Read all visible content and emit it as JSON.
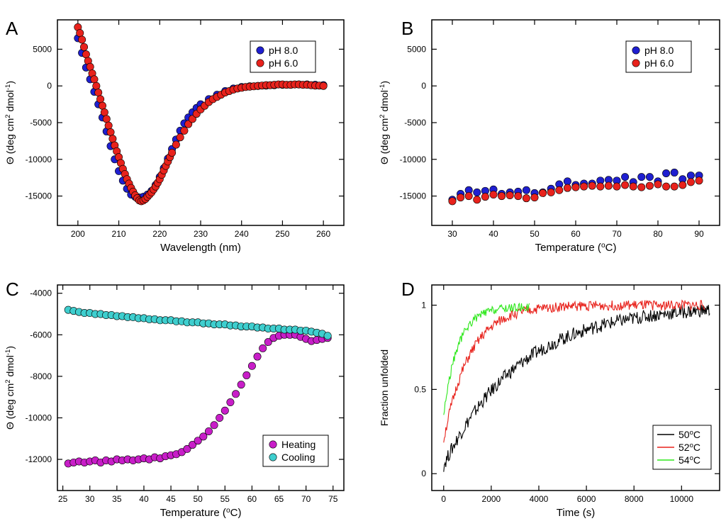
{
  "chart_data": [
    {
      "id": "A",
      "type": "scatter",
      "panel_label": "A",
      "xlabel": "Wavelength (nm)",
      "ylabel": {
        "pre": "Θ (deg cm",
        "sup1": "2",
        "mid": " dmol",
        "sup2": "-1",
        "post": ")"
      },
      "xlim": [
        195,
        265
      ],
      "ylim": [
        -19000,
        9000
      ],
      "xticks": [
        200,
        210,
        220,
        230,
        240,
        250,
        260
      ],
      "yticks": [
        5000,
        0,
        -5000,
        -10000,
        -15000
      ],
      "legend": {
        "placement": "top-right",
        "entries": [
          "pH 8.0",
          "pH 6.0"
        ]
      },
      "series": [
        {
          "name": "pH 8.0",
          "color": "#1f1fd0",
          "kind": "markers",
          "x": [
            200,
            201,
            202,
            203,
            204,
            205,
            206,
            207,
            208,
            209,
            210,
            211,
            212,
            213,
            214,
            215,
            216,
            217,
            218,
            219,
            220,
            221,
            222,
            223,
            224,
            225,
            226,
            227,
            228,
            229,
            230,
            232,
            234,
            236,
            238,
            240,
            242,
            244,
            246,
            248,
            250,
            252,
            254,
            256,
            258,
            260
          ],
          "y": [
            6500,
            4500,
            2500,
            900,
            -800,
            -2500,
            -4300,
            -6200,
            -8200,
            -10000,
            -11600,
            -12900,
            -14000,
            -14800,
            -15100,
            -15200,
            -15100,
            -14800,
            -14300,
            -13500,
            -12400,
            -11200,
            -9900,
            -8600,
            -7300,
            -6100,
            -5100,
            -4300,
            -3600,
            -3000,
            -2500,
            -1800,
            -1200,
            -700,
            -350,
            -150,
            -50,
            0,
            50,
            100,
            150,
            150,
            200,
            200,
            150,
            100
          ]
        },
        {
          "name": "pH 6.0",
          "color": "#e8221c",
          "kind": "markers",
          "x": [
            200,
            200.5,
            201,
            201.5,
            202,
            202.5,
            203,
            203.5,
            204,
            204.5,
            205,
            205.5,
            206,
            206.5,
            207,
            207.5,
            208,
            208.5,
            209,
            209.5,
            210,
            210.5,
            211,
            211.5,
            212,
            212.5,
            213,
            213.5,
            214,
            214.5,
            215,
            215.5,
            216,
            216.5,
            217,
            217.5,
            218,
            218.5,
            219,
            219.5,
            220,
            220.5,
            221,
            221.5,
            222,
            222.5,
            223,
            224,
            225,
            226,
            227,
            228,
            229,
            230,
            231,
            232,
            233,
            234,
            235,
            236,
            237,
            238,
            239,
            240,
            241,
            242,
            243,
            244,
            245,
            246,
            247,
            248,
            249,
            250,
            251,
            252,
            253,
            254,
            255,
            256,
            257,
            258,
            259,
            260
          ],
          "y": [
            8000,
            7200,
            6300,
            5300,
            4300,
            3400,
            2600,
            1700,
            900,
            0,
            -900,
            -1800,
            -2700,
            -3600,
            -4500,
            -5400,
            -6300,
            -7200,
            -8100,
            -8900,
            -9700,
            -10500,
            -11300,
            -12000,
            -12700,
            -13300,
            -13900,
            -14400,
            -14900,
            -15300,
            -15600,
            -15700,
            -15600,
            -15400,
            -15100,
            -14800,
            -14500,
            -14100,
            -13700,
            -13200,
            -12700,
            -12100,
            -11500,
            -10900,
            -10300,
            -9700,
            -9100,
            -8000,
            -7000,
            -6100,
            -5200,
            -4500,
            -3800,
            -3200,
            -2700,
            -2200,
            -1800,
            -1500,
            -1200,
            -900,
            -700,
            -500,
            -350,
            -250,
            -150,
            -100,
            -50,
            0,
            50,
            100,
            100,
            150,
            200,
            200,
            150,
            150,
            200,
            200,
            150,
            150,
            100,
            50,
            50,
            0
          ]
        }
      ]
    },
    {
      "id": "B",
      "type": "scatter",
      "panel_label": "B",
      "xlabel": {
        "pre": "Temperature (",
        "sup": "o",
        "post": "C)"
      },
      "ylabel": {
        "pre": "Θ (deg cm",
        "sup1": "2",
        "mid": " dmol",
        "sup2": "-1",
        "post": ")"
      },
      "xlim": [
        25,
        95
      ],
      "ylim": [
        -19000,
        9000
      ],
      "xticks": [
        30,
        40,
        50,
        60,
        70,
        80,
        90
      ],
      "yticks": [
        5000,
        0,
        -5000,
        -10000,
        -15000
      ],
      "legend": {
        "placement": "top-right",
        "entries": [
          "pH 8.0",
          "pH 6.0"
        ]
      },
      "series": [
        {
          "name": "pH 8.0",
          "color": "#1f1fd0",
          "kind": "markers",
          "x": [
            30,
            32,
            34,
            36,
            38,
            40,
            42,
            44,
            46,
            48,
            50,
            52,
            54,
            56,
            58,
            60,
            62,
            64,
            66,
            68,
            70,
            72,
            74,
            76,
            78,
            80,
            82,
            84,
            86,
            88,
            90
          ],
          "y": [
            -15500,
            -14700,
            -14200,
            -14500,
            -14300,
            -14100,
            -14700,
            -14500,
            -14400,
            -14200,
            -14600,
            -14500,
            -14000,
            -13400,
            -13000,
            -13500,
            -13300,
            -13300,
            -12900,
            -12800,
            -12900,
            -12400,
            -13100,
            -12400,
            -12400,
            -13000,
            -11900,
            -11800,
            -12700,
            -12200,
            -12200
          ]
        },
        {
          "name": "pH 6.0",
          "color": "#e8221c",
          "kind": "markers",
          "x": [
            30,
            32,
            34,
            36,
            38,
            40,
            42,
            44,
            46,
            48,
            50,
            52,
            54,
            56,
            58,
            60,
            62,
            64,
            66,
            68,
            70,
            72,
            74,
            76,
            78,
            80,
            82,
            84,
            86,
            88,
            90
          ],
          "y": [
            -15700,
            -15200,
            -15000,
            -15500,
            -15100,
            -14800,
            -15000,
            -14900,
            -15000,
            -15300,
            -15200,
            -14600,
            -14500,
            -14200,
            -13900,
            -13800,
            -13700,
            -13600,
            -13700,
            -13600,
            -13700,
            -13500,
            -13700,
            -13800,
            -13600,
            -13400,
            -13700,
            -13700,
            -13500,
            -13100,
            -12900
          ]
        }
      ]
    },
    {
      "id": "C",
      "type": "scatter",
      "panel_label": "C",
      "xlabel": {
        "pre": "Temperature (",
        "sup": "o",
        "post": "C)"
      },
      "ylabel": {
        "pre": "Θ (deg cm",
        "sup1": "2",
        "mid": " dmol",
        "sup2": "-1",
        "post": ")"
      },
      "xlim": [
        24,
        77
      ],
      "ylim": [
        -13500,
        -3600
      ],
      "xticks": [
        25,
        30,
        35,
        40,
        45,
        50,
        55,
        60,
        65,
        70,
        75
      ],
      "yticks": [
        -4000,
        -6000,
        -8000,
        -10000,
        -12000
      ],
      "legend": {
        "placement": "bottom-right",
        "entries": [
          "Heating",
          "Cooling"
        ]
      },
      "series": [
        {
          "name": "Heating",
          "color": "#c81ec8",
          "kind": "markers",
          "x": [
            26,
            27,
            28,
            29,
            30,
            31,
            32,
            33,
            34,
            35,
            36,
            37,
            38,
            39,
            40,
            41,
            42,
            43,
            44,
            45,
            46,
            47,
            48,
            49,
            50,
            51,
            52,
            53,
            54,
            55,
            56,
            57,
            58,
            59,
            60,
            61,
            62,
            63,
            64,
            65,
            66,
            67,
            68,
            69,
            70,
            71,
            72,
            73,
            74
          ],
          "y": [
            -12200,
            -12150,
            -12100,
            -12150,
            -12100,
            -12050,
            -12150,
            -12050,
            -12100,
            -12000,
            -12050,
            -12000,
            -12050,
            -12000,
            -11950,
            -12000,
            -11900,
            -11950,
            -11850,
            -11800,
            -11750,
            -11650,
            -11500,
            -11300,
            -11100,
            -10900,
            -10650,
            -10350,
            -10000,
            -9650,
            -9250,
            -8850,
            -8400,
            -7950,
            -7500,
            -7050,
            -6650,
            -6350,
            -6150,
            -6050,
            -6000,
            -6000,
            -6000,
            -6100,
            -6200,
            -6300,
            -6250,
            -6200,
            -6150
          ]
        },
        {
          "name": "Cooling",
          "color": "#3ecece",
          "kind": "markers",
          "x": [
            26,
            27,
            28,
            29,
            30,
            31,
            32,
            33,
            34,
            35,
            36,
            37,
            38,
            39,
            40,
            41,
            42,
            43,
            44,
            45,
            46,
            47,
            48,
            49,
            50,
            51,
            52,
            53,
            54,
            55,
            56,
            57,
            58,
            59,
            60,
            61,
            62,
            63,
            64,
            65,
            66,
            67,
            68,
            69,
            70,
            71,
            72,
            73,
            74
          ],
          "y": [
            -4800,
            -4850,
            -4900,
            -4950,
            -4950,
            -5000,
            -5000,
            -5050,
            -5050,
            -5100,
            -5100,
            -5150,
            -5150,
            -5200,
            -5200,
            -5250,
            -5250,
            -5300,
            -5300,
            -5300,
            -5350,
            -5350,
            -5400,
            -5400,
            -5400,
            -5450,
            -5450,
            -5500,
            -5500,
            -5500,
            -5550,
            -5550,
            -5600,
            -5600,
            -5600,
            -5650,
            -5650,
            -5700,
            -5700,
            -5700,
            -5750,
            -5750,
            -5750,
            -5800,
            -5800,
            -5850,
            -5900,
            -5950,
            -6050
          ]
        }
      ]
    },
    {
      "id": "D",
      "type": "line",
      "panel_label": "D",
      "xlabel": "Time (s)",
      "ylabel": "Fraction unfolded",
      "xlim": [
        -500,
        11600
      ],
      "ylim": [
        -0.1,
        1.12
      ],
      "xticks": [
        0,
        2000,
        4000,
        6000,
        8000,
        10000
      ],
      "yticks": [
        0,
        0.5,
        1
      ],
      "ytick_labels": [
        "0",
        "0.5",
        "1"
      ],
      "legend": {
        "placement": "bottom-right",
        "entries": [
          "50°C",
          "52°C",
          "54°C"
        ],
        "labels": [
          {
            "pre": "50",
            "sup": "o",
            "post": "C"
          },
          {
            "pre": "52",
            "sup": "o",
            "post": "C"
          },
          {
            "pre": "54",
            "sup": "o",
            "post": "C"
          }
        ]
      },
      "series": [
        {
          "name": "50°C",
          "color": "#000000",
          "kind": "line",
          "tau": 3200,
          "y0": 0.05,
          "ymax": 1.0,
          "tmax": 11200,
          "noise": 0.04
        },
        {
          "name": "52°C",
          "color": "#e8221c",
          "kind": "line",
          "tau": 1100,
          "y0": 0.2,
          "ymax": 1.0,
          "tmax": 11000,
          "noise": 0.03
        },
        {
          "name": "54°C",
          "color": "#2ee81c",
          "kind": "line",
          "tau": 600,
          "y0": 0.35,
          "ymax": 0.99,
          "tmax": 3600,
          "noise": 0.025
        }
      ]
    }
  ]
}
